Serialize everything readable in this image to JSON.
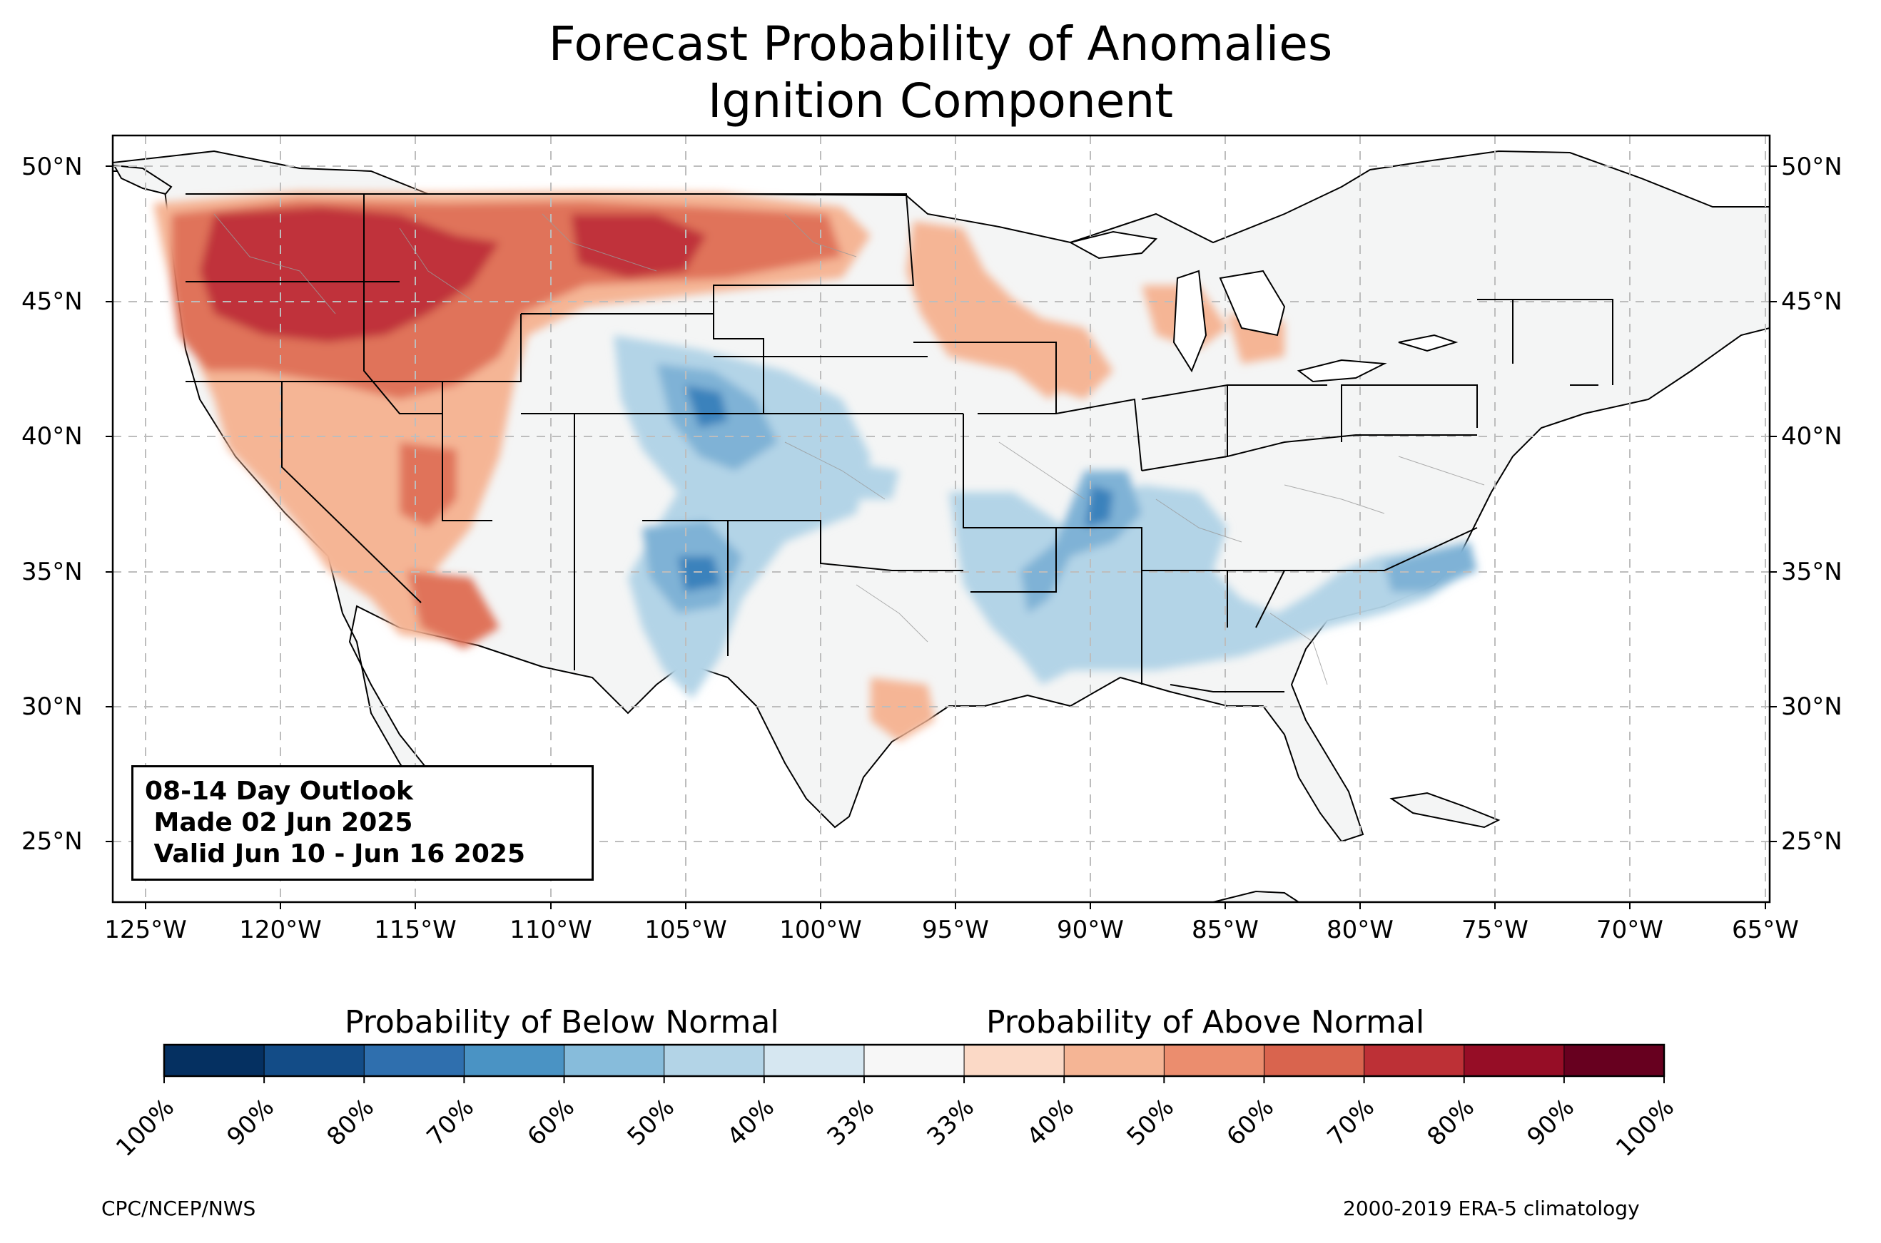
{
  "title_line1": "Forecast Probability of Anomalies",
  "title_line2": "Ignition Component",
  "outlook": {
    "line1": "08-14 Day Outlook",
    "line2": " Made 02 Jun 2025",
    "line3": " Valid Jun 10 - Jun 16 2025"
  },
  "lat_labels": [
    "50°N",
    "45°N",
    "40°N",
    "35°N",
    "30°N",
    "25°N"
  ],
  "lon_labels": [
    "125°W",
    "120°W",
    "115°W",
    "110°W",
    "105°W",
    "100°W",
    "95°W",
    "90°W",
    "85°W",
    "80°W",
    "75°W",
    "70°W",
    "65°W"
  ],
  "legend": {
    "below_label": "Probability of Below Normal",
    "above_label": "Probability of Above Normal",
    "ticks": [
      "100%",
      "90%",
      "80%",
      "70%",
      "60%",
      "50%",
      "40%",
      "33%",
      "33%",
      "40%",
      "50%",
      "60%",
      "70%",
      "80%",
      "90%",
      "100%"
    ],
    "colors": [
      "#053061",
      "#134c87",
      "#2f6fae",
      "#4a93c4",
      "#87bcdb",
      "#b3d4e7",
      "#d6e7f1",
      "#f7f7f7",
      "#fbd9c6",
      "#f5b595",
      "#eb8d6e",
      "#d9644e",
      "#bd3036",
      "#960d26",
      "#67001f"
    ]
  },
  "footer": {
    "left": "CPC/NCEP/NWS",
    "right": "2000-2019 ERA-5 climatology"
  },
  "colors": {
    "land": "#f4f5f5",
    "ocean": "#ffffff",
    "above_light": "#f5b595",
    "above_mid": "#e0735a",
    "above_strong": "#c0303a",
    "below_light": "#b3d4e7",
    "below_mid": "#7fb2d6",
    "below_strong": "#3a82bc"
  }
}
